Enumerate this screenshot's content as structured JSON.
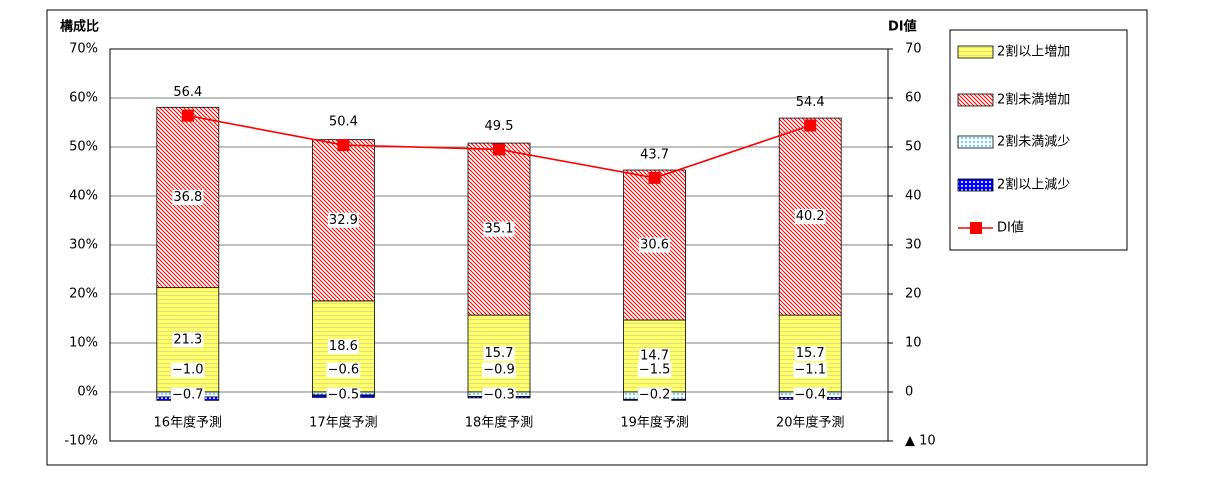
{
  "chart_data": {
    "type": "bar",
    "y_label": "構成比",
    "y2_label": "DI値",
    "categories": [
      "16年度予測",
      "17年度予測",
      "18年度予測",
      "19年度予測",
      "20年度予測"
    ],
    "series": [
      {
        "name": "2割以上増加",
        "color": "#ffff66",
        "values": [
          21.3,
          18.6,
          15.7,
          14.7,
          15.7
        ]
      },
      {
        "name": "2割未満増加",
        "color": "#ff0000",
        "values": [
          36.8,
          32.9,
          35.1,
          30.6,
          40.2
        ]
      },
      {
        "name": "2割未満減少",
        "color": "#33ccff",
        "values": [
          -1.0,
          -0.6,
          -0.9,
          -1.5,
          -1.1
        ],
        "value_labels": [
          "−1.0",
          "−0.6",
          "−0.9",
          "−1.5",
          "−1.1"
        ]
      },
      {
        "name": "2割以上減少",
        "color": "#0000ff",
        "values": [
          -0.7,
          -0.5,
          -0.3,
          -0.2,
          -0.4
        ],
        "value_labels": [
          "−0.7",
          "−0.5",
          "−0.3",
          "−0.2",
          "−0.4"
        ]
      },
      {
        "name": "DI値",
        "type": "line",
        "axis": "y2",
        "color": "#ff0000",
        "values": [
          56.4,
          50.4,
          49.5,
          43.7,
          54.4
        ]
      }
    ],
    "ylim": [
      -10,
      70
    ],
    "yticks": [
      {
        "value": -10,
        "label": "-10%"
      },
      {
        "value": 0,
        "label": "0%"
      },
      {
        "value": 10,
        "label": "10%"
      },
      {
        "value": 20,
        "label": "20%"
      },
      {
        "value": 30,
        "label": "30%"
      },
      {
        "value": 40,
        "label": "40%"
      },
      {
        "value": 50,
        "label": "50%"
      },
      {
        "value": 60,
        "label": "60%"
      },
      {
        "value": 70,
        "label": "70%"
      }
    ],
    "y2lim": [
      -10,
      70
    ],
    "y2ticks": [
      {
        "value": -10,
        "label": "▲ 10"
      },
      0,
      10,
      20,
      30,
      40,
      50,
      60,
      70
    ],
    "grid": true,
    "legend": "right"
  }
}
